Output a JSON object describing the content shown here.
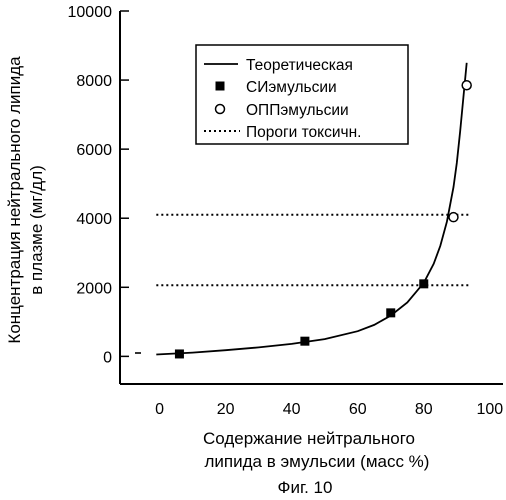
{
  "chart_data": {
    "type": "scatter",
    "title": "",
    "figure_caption": "Фиг. 10",
    "xlabel_line1": "Содержание нейтрального",
    "xlabel_line2": "липида в эмульсии (масс %)",
    "ylabel_line1": "Концентрация нейтрального липида",
    "ylabel_line2": "в плазме  (мг/дл)",
    "xlim": [
      -12,
      104
    ],
    "ylim": [
      -800,
      10000
    ],
    "x_ticks": [
      0,
      20,
      40,
      60,
      80,
      100
    ],
    "x_tick_labels": [
      "0",
      "20",
      "40",
      "60",
      "80",
      "100"
    ],
    "y_ticks": [
      0,
      2000,
      4000,
      6000,
      8000,
      10000
    ],
    "y_tick_labels": [
      "0",
      "2000",
      "4000",
      "6000",
      "8000",
      "10000"
    ],
    "legend_position": "top-right",
    "series": [
      {
        "name": "Теоретическая",
        "kind": "line",
        "style": "solid",
        "x": [
          -1,
          10,
          20,
          30,
          40,
          50,
          60,
          65,
          70,
          75,
          80,
          83,
          85,
          87,
          89,
          90,
          91,
          92,
          93
        ],
        "y": [
          55,
          110,
          180,
          260,
          360,
          500,
          730,
          910,
          1180,
          1560,
          2130,
          2680,
          3200,
          3900,
          4900,
          5600,
          6500,
          7500,
          8500
        ]
      },
      {
        "name": "СИэмульсии",
        "kind": "points",
        "marker": "filled-square",
        "x": [
          6,
          44,
          70,
          80
        ],
        "y": [
          70,
          440,
          1260,
          2100
        ]
      },
      {
        "name": "ОППэмульсии",
        "kind": "points",
        "marker": "open-circle",
        "x": [
          89,
          93
        ],
        "y": [
          4030,
          7850
        ]
      },
      {
        "name": "Пороги токсичн.",
        "kind": "lines",
        "style": "dotted",
        "lines": [
          {
            "x": [
              -1,
              94
            ],
            "y": [
              4100,
              4100
            ]
          },
          {
            "x": [
              -1,
              94
            ],
            "y": [
              2060,
              2060
            ]
          }
        ]
      }
    ],
    "legend": [
      {
        "label": "Теоретическая",
        "symbol": "solid-line"
      },
      {
        "label": "СИэмульсии",
        "symbol": "filled-square"
      },
      {
        "label": "ОППэмульсии",
        "symbol": "open-circle"
      },
      {
        "label": "Пороги токсичн.",
        "symbol": "dotted-line"
      }
    ]
  }
}
